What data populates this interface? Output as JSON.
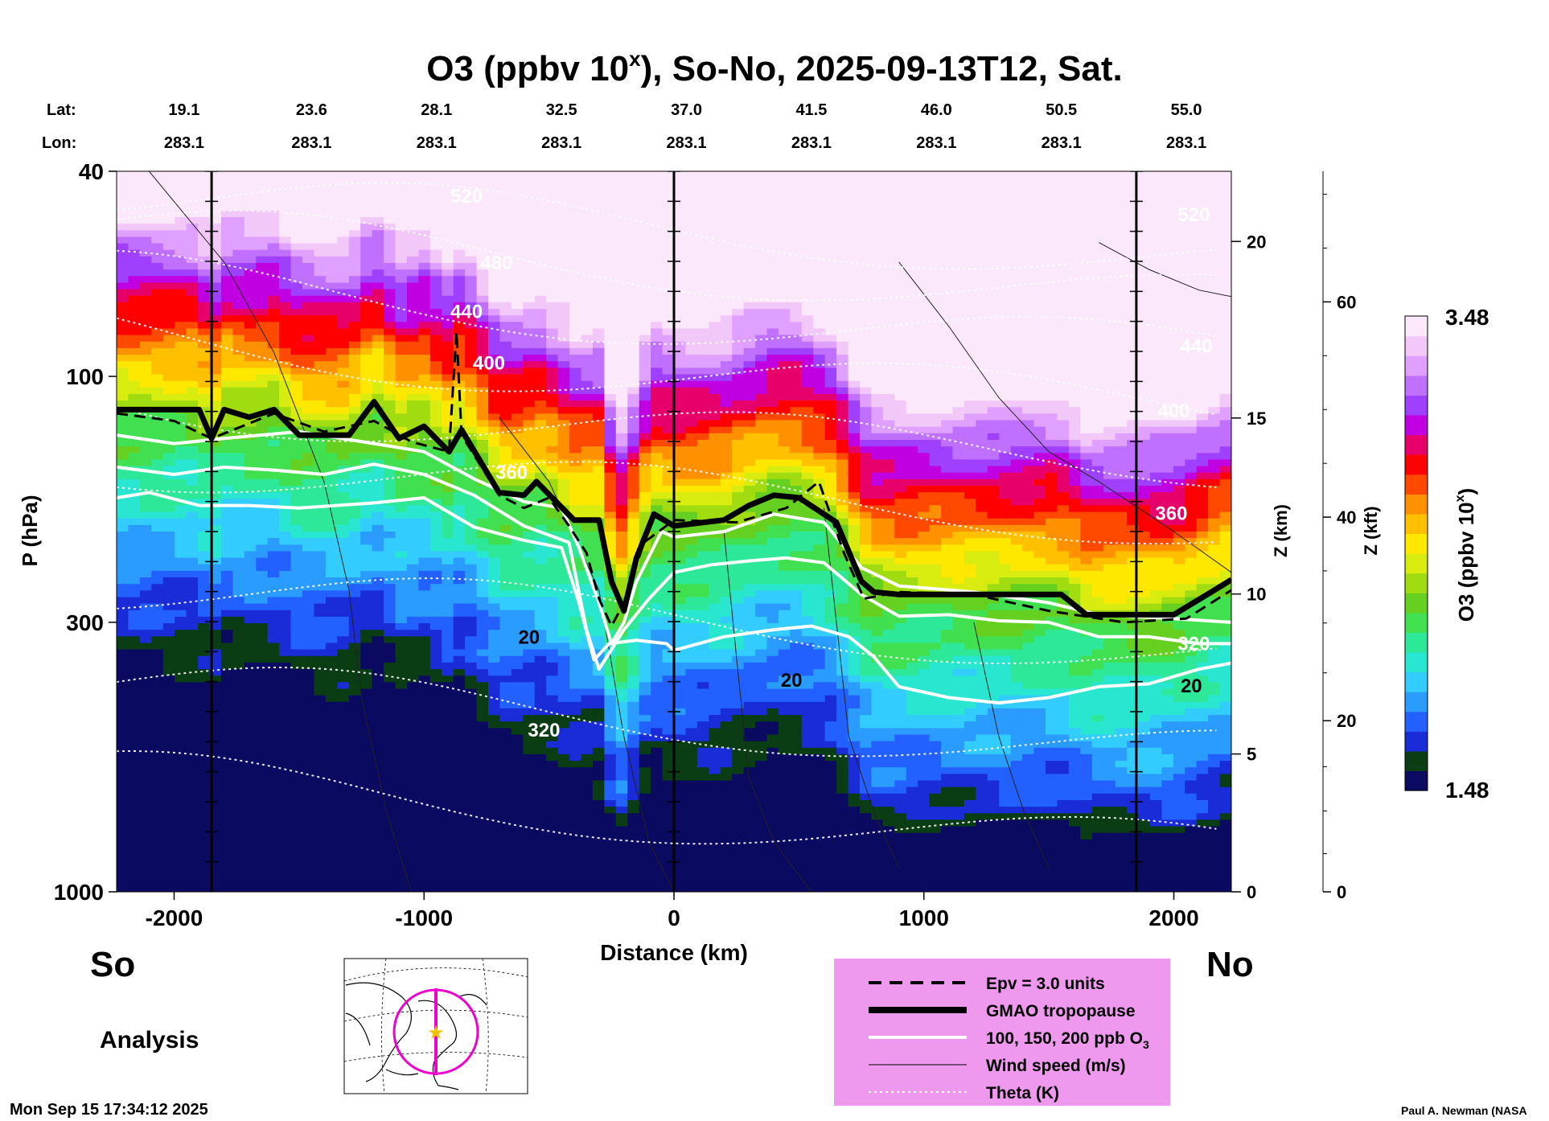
{
  "chart_data": {
    "type": "heatmap",
    "title_main": "O3 (ppbv 10",
    "title_sup": "x",
    "title_rest": "), So-No, 2025-09-13T12, Sat.",
    "lat_label": "Lat:",
    "lon_label": "Lon:",
    "lats": [
      "19.1",
      "23.6",
      "28.1",
      "32.5",
      "37.0",
      "41.5",
      "46.0",
      "50.5",
      "55.0"
    ],
    "lons": [
      "283.1",
      "283.1",
      "283.1",
      "283.1",
      "283.1",
      "283.1",
      "283.1",
      "283.1",
      "283.1"
    ],
    "xlabel": "Distance (km)",
    "xlim": [
      -2230,
      2230
    ],
    "xticks": [
      -2000,
      -1000,
      0,
      1000,
      2000
    ],
    "xtick_labels": [
      "-2000",
      "-1000",
      "0",
      "1000",
      "2000"
    ],
    "ylabel": "P (hPa)",
    "ylim": [
      1000,
      40
    ],
    "yticks": [
      40,
      100,
      300,
      1000
    ],
    "ytick_labels": [
      "40",
      "100",
      "300",
      "1000"
    ],
    "zkm_label": "Z (km)",
    "zkm_ticks": [
      0,
      5,
      10,
      15,
      20
    ],
    "zkm_tick_labels": [
      "0",
      "5",
      "10",
      "15",
      "20"
    ],
    "zkft_label": "Z (kft)",
    "zkft_ticks": [
      0,
      20,
      40,
      60
    ],
    "zkft_tick_labels": [
      "0",
      "20",
      "40",
      "60"
    ],
    "colorbar": {
      "label_main": "O3 (ppbv 10",
      "label_sup": "x",
      "label_end": ")",
      "min": 1.48,
      "max": 3.48,
      "min_label": "1.48",
      "max_label": "3.48",
      "colors": [
        "#0a0a60",
        "#0b3d15",
        "#1a2bd8",
        "#2260ff",
        "#2a9bff",
        "#32ccff",
        "#28e6d0",
        "#2ee89a",
        "#40e050",
        "#66d020",
        "#a0dc10",
        "#d8ec10",
        "#ffe800",
        "#ffc000",
        "#ff9000",
        "#ff4800",
        "#ff0000",
        "#e8006a",
        "#c000e0",
        "#a040ff",
        "#c070ff",
        "#e0a0ff",
        "#f2c8f8",
        "#fbe8fb"
      ]
    },
    "vertical_lines_km": [
      -1850,
      0,
      1850
    ],
    "tropopause_hpa": [
      [
        -2230,
        116
      ],
      [
        -2050,
        116
      ],
      [
        -1900,
        116
      ],
      [
        -1850,
        132
      ],
      [
        -1800,
        116
      ],
      [
        -1700,
        120
      ],
      [
        -1600,
        116
      ],
      [
        -1500,
        130
      ],
      [
        -1300,
        130
      ],
      [
        -1200,
        112
      ],
      [
        -1100,
        132
      ],
      [
        -1000,
        125
      ],
      [
        -900,
        140
      ],
      [
        -850,
        127
      ],
      [
        -700,
        168
      ],
      [
        -600,
        170
      ],
      [
        -550,
        160
      ],
      [
        -400,
        190
      ],
      [
        -300,
        190
      ],
      [
        -250,
        250
      ],
      [
        -200,
        285
      ],
      [
        -150,
        225
      ],
      [
        -80,
        185
      ],
      [
        0,
        195
      ],
      [
        200,
        190
      ],
      [
        300,
        178
      ],
      [
        400,
        170
      ],
      [
        500,
        172
      ],
      [
        650,
        192
      ],
      [
        750,
        250
      ],
      [
        800,
        262
      ],
      [
        900,
        265
      ],
      [
        1200,
        265
      ],
      [
        1550,
        265
      ],
      [
        1650,
        290
      ],
      [
        1800,
        290
      ],
      [
        2000,
        290
      ],
      [
        2150,
        262
      ],
      [
        2230,
        248
      ]
    ],
    "epv_hpa": [
      [
        -2230,
        118
      ],
      [
        -2000,
        122
      ],
      [
        -1850,
        132
      ],
      [
        -1600,
        118
      ],
      [
        -1400,
        128
      ],
      [
        -1200,
        122
      ],
      [
        -1050,
        134
      ],
      [
        -900,
        140
      ],
      [
        -870,
        82
      ],
      [
        -850,
        130
      ],
      [
        -700,
        170
      ],
      [
        -600,
        180
      ],
      [
        -500,
        172
      ],
      [
        -420,
        195
      ],
      [
        -350,
        220
      ],
      [
        -300,
        270
      ],
      [
        -250,
        305
      ],
      [
        -200,
        275
      ],
      [
        -120,
        210
      ],
      [
        0,
        190
      ],
      [
        250,
        192
      ],
      [
        450,
        180
      ],
      [
        580,
        160
      ],
      [
        680,
        220
      ],
      [
        760,
        270
      ],
      [
        900,
        262
      ],
      [
        1200,
        265
      ],
      [
        1500,
        285
      ],
      [
        1800,
        300
      ],
      [
        2050,
        295
      ],
      [
        2230,
        260
      ]
    ],
    "white_contours_hpa": [
      [
        [
          -2230,
          130
        ],
        [
          -2000,
          135
        ],
        [
          -1800,
          132
        ],
        [
          -1500,
          128
        ],
        [
          -1200,
          135
        ],
        [
          -1000,
          140
        ],
        [
          -800,
          158
        ],
        [
          -600,
          175
        ],
        [
          -450,
          180
        ],
        [
          -380,
          215
        ],
        [
          -300,
          275
        ],
        [
          -250,
          330
        ],
        [
          -200,
          300
        ],
        [
          -150,
          250
        ],
        [
          -50,
          200
        ],
        [
          0,
          205
        ],
        [
          200,
          200
        ],
        [
          400,
          185
        ],
        [
          600,
          192
        ],
        [
          750,
          235
        ],
        [
          900,
          255
        ],
        [
          1200,
          262
        ],
        [
          1500,
          275
        ],
        [
          1700,
          290
        ],
        [
          2000,
          295
        ],
        [
          2230,
          300
        ]
      ],
      [
        [
          -2230,
          150
        ],
        [
          -2000,
          155
        ],
        [
          -1800,
          150
        ],
        [
          -1600,
          152
        ],
        [
          -1400,
          155
        ],
        [
          -1200,
          148
        ],
        [
          -1000,
          155
        ],
        [
          -800,
          170
        ],
        [
          -600,
          195
        ],
        [
          -420,
          210
        ],
        [
          -350,
          310
        ],
        [
          -300,
          370
        ],
        [
          -200,
          310
        ],
        [
          -100,
          270
        ],
        [
          0,
          240
        ],
        [
          150,
          232
        ],
        [
          300,
          228
        ],
        [
          450,
          225
        ],
        [
          600,
          230
        ],
        [
          750,
          265
        ],
        [
          900,
          292
        ],
        [
          1100,
          290
        ],
        [
          1300,
          298
        ],
        [
          1500,
          300
        ],
        [
          1700,
          320
        ],
        [
          1900,
          320
        ],
        [
          2100,
          330
        ],
        [
          2230,
          330
        ]
      ],
      [
        [
          -2230,
          172
        ],
        [
          -2100,
          168
        ],
        [
          -1900,
          178
        ],
        [
          -1700,
          178
        ],
        [
          -1500,
          180
        ],
        [
          -1200,
          176
        ],
        [
          -1000,
          172
        ],
        [
          -800,
          196
        ],
        [
          -600,
          208
        ],
        [
          -450,
          215
        ],
        [
          -380,
          275
        ],
        [
          -320,
          355
        ],
        [
          -260,
          330
        ],
        [
          -150,
          325
        ],
        [
          -30,
          330
        ],
        [
          0,
          340
        ],
        [
          200,
          320
        ],
        [
          400,
          310
        ],
        [
          550,
          305
        ],
        [
          700,
          320
        ],
        [
          800,
          350
        ],
        [
          900,
          400
        ],
        [
          1100,
          420
        ],
        [
          1300,
          430
        ],
        [
          1500,
          420
        ],
        [
          1700,
          400
        ],
        [
          1900,
          395
        ],
        [
          2100,
          370
        ],
        [
          2230,
          360
        ]
      ]
    ],
    "contour_labels": [
      {
        "x_km": -650,
        "p_hpa": 158,
        "text": "360"
      },
      {
        "x_km": -740,
        "p_hpa": 97,
        "text": "400"
      },
      {
        "x_km": -830,
        "p_hpa": 77,
        "text": "440"
      },
      {
        "x_km": -710,
        "p_hpa": 62,
        "text": "480"
      },
      {
        "x_km": -830,
        "p_hpa": 46,
        "text": "520"
      },
      {
        "x_km": -520,
        "p_hpa": 500,
        "text": "320"
      },
      {
        "x_km": -580,
        "p_hpa": 330,
        "text": "20"
      },
      {
        "x_km": 470,
        "p_hpa": 400,
        "text": "20"
      },
      {
        "x_km": 2000,
        "p_hpa": 120,
        "text": "400"
      },
      {
        "x_km": 2090,
        "p_hpa": 90,
        "text": "440"
      },
      {
        "x_km": 1990,
        "p_hpa": 190,
        "text": "360"
      },
      {
        "x_km": 2080,
        "p_hpa": 340,
        "text": "320"
      },
      {
        "x_km": 2070,
        "p_hpa": 410,
        "text": "20"
      },
      {
        "x_km": 2080,
        "p_hpa": 50,
        "text": "520"
      }
    ]
  },
  "footer": {
    "south": "So",
    "north": "No",
    "analysis": "Analysis",
    "timestamp": "Mon Sep 15 17:34:12 2025",
    "credit": "Paul A. Newman (NASA"
  },
  "legend": {
    "items": [
      {
        "style": "dash",
        "text": "Epv = 3.0 units"
      },
      {
        "style": "thick",
        "text": "GMAO tropopause"
      },
      {
        "style": "white",
        "text": "100, 150, 200 ppb O",
        "sub": "3"
      },
      {
        "style": "thin",
        "text": "Wind speed (m/s)"
      },
      {
        "style": "dotted",
        "text": "Theta (K)"
      }
    ],
    "bg": "#ee99ee"
  },
  "map": {
    "circle_color": "#ee00cc",
    "marker_color": "#f2c200"
  }
}
